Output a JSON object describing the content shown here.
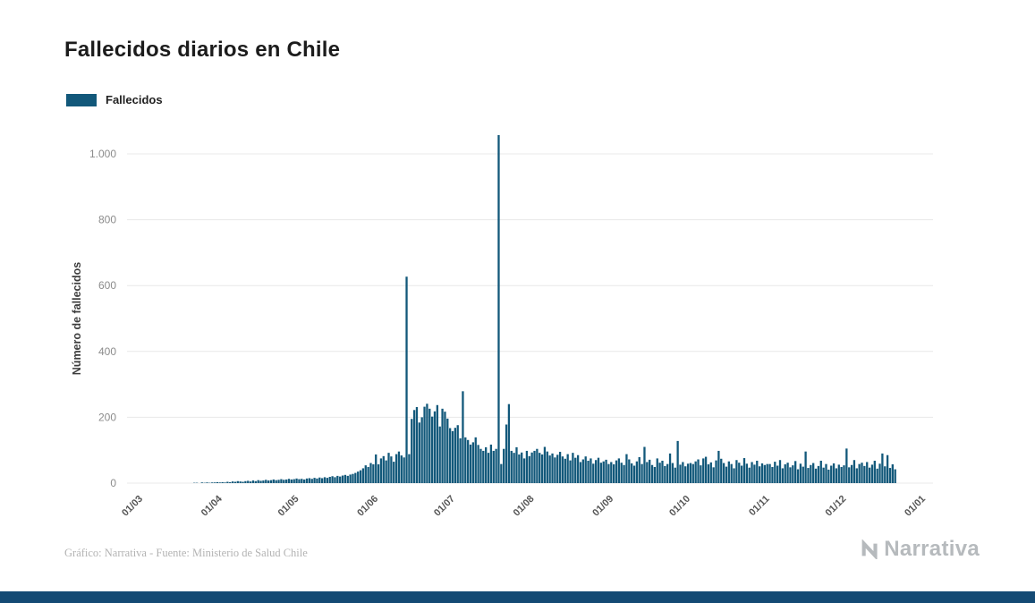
{
  "page": {
    "title": "Fallecidos diarios en Chile",
    "legend": {
      "label": "Fallecidos",
      "color": "#12587a"
    },
    "footer_credit": "Gráfico: Narrativa - Fuente: Ministerio de Salud Chile",
    "brand": "Narrativa",
    "brand_color": "#b6babd",
    "bottom_bar_color": "#144a74"
  },
  "chart_data": {
    "type": "bar",
    "title": "Fallecidos diarios en Chile",
    "xlabel": "",
    "ylabel": "Número de fallecidos",
    "legend_position": "top-left",
    "grid": true,
    "bar_color": "#12587a",
    "ylim": [
      0,
      1100
    ],
    "y_ticks": [
      0,
      200,
      400,
      600,
      800,
      1000
    ],
    "y_tick_labels": [
      "0",
      "200",
      "400",
      "600",
      "800",
      "1.000"
    ],
    "x_tick_labels": [
      "01/03",
      "01/04",
      "01/05",
      "01/06",
      "01/07",
      "01/08",
      "01/09",
      "01/10",
      "01/11",
      "01/12",
      "01/01"
    ],
    "x_tick_day_offsets": [
      0,
      31,
      61,
      92,
      122,
      153,
      184,
      214,
      245,
      275,
      306
    ],
    "x_total_days": 306,
    "series": [
      {
        "name": "Fallecidos",
        "values": [
          0,
          0,
          0,
          0,
          0,
          0,
          0,
          0,
          0,
          0,
          0,
          0,
          0,
          0,
          0,
          0,
          0,
          0,
          0,
          0,
          1,
          1,
          0,
          2,
          1,
          2,
          1,
          2,
          2,
          3,
          2,
          3,
          2,
          4,
          3,
          5,
          4,
          6,
          5,
          4,
          6,
          7,
          5,
          8,
          6,
          9,
          7,
          8,
          10,
          8,
          9,
          11,
          9,
          10,
          12,
          10,
          11,
          13,
          11,
          12,
          14,
          12,
          13,
          11,
          14,
          15,
          13,
          16,
          14,
          17,
          15,
          18,
          16,
          19,
          21,
          18,
          22,
          20,
          23,
          25,
          22,
          26,
          28,
          31,
          35,
          39,
          45,
          54,
          49,
          61,
          57,
          87,
          57,
          75,
          82,
          69,
          92,
          81,
          65,
          88,
          96,
          84,
          78,
          627,
          88,
          195,
          222,
          231,
          184,
          200,
          232,
          241,
          226,
          202,
          218,
          237,
          172,
          226,
          217,
          196,
          167,
          158,
          168,
          176,
          136,
          279,
          139,
          131,
          117,
          124,
          139,
          116,
          104,
          98,
          109,
          92,
          117,
          98,
          104,
          1057,
          58,
          104,
          178,
          240,
          98,
          92,
          109,
          87,
          93,
          75,
          98,
          82,
          93,
          98,
          104,
          92,
          87,
          110,
          96,
          84,
          90,
          78,
          86,
          95,
          81,
          74,
          88,
          69,
          92,
          77,
          85,
          64,
          72,
          81,
          68,
          75,
          59,
          70,
          77,
          62,
          66,
          71,
          58,
          64,
          57,
          69,
          75,
          62,
          55,
          88,
          72,
          60,
          53,
          66,
          79,
          58,
          110,
          64,
          71,
          55,
          49,
          75,
          62,
          68,
          52,
          58,
          90,
          61,
          47,
          128,
          56,
          64,
          51,
          59,
          61,
          58,
          66,
          72,
          54,
          75,
          80,
          57,
          63,
          48,
          69,
          98,
          74,
          61,
          50,
          66,
          58,
          45,
          70,
          62,
          53,
          76,
          59,
          47,
          64,
          56,
          68,
          51,
          60,
          55,
          58,
          58,
          49,
          65,
          53,
          70,
          45,
          57,
          62,
          48,
          54,
          67,
          42,
          59,
          50,
          96,
          46,
          55,
          61,
          44,
          52,
          68,
          47,
          58,
          41,
          53,
          60,
          45,
          56,
          49,
          54,
          105,
          48,
          55,
          70,
          45,
          58,
          62,
          52,
          64,
          47,
          56,
          68,
          44,
          59,
          90,
          51,
          85,
          46,
          57,
          42
        ]
      }
    ]
  }
}
